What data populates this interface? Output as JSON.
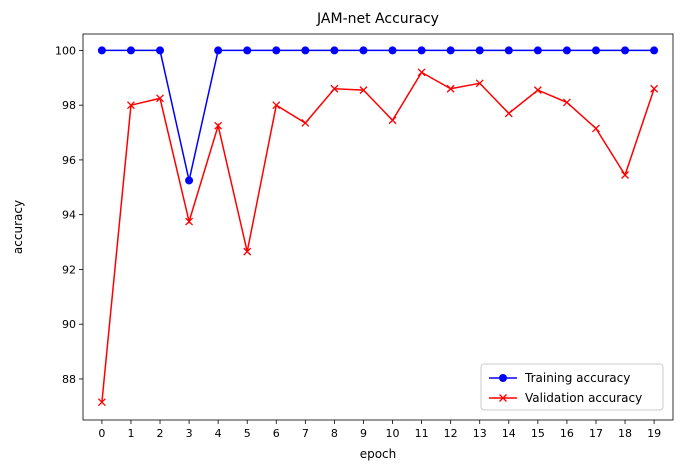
{
  "chart_data": {
    "type": "line",
    "title": "JAM-net Accuracy",
    "xlabel": "epoch",
    "ylabel": "accuracy",
    "x": [
      0,
      1,
      2,
      3,
      4,
      5,
      6,
      7,
      8,
      9,
      10,
      11,
      12,
      13,
      14,
      15,
      16,
      17,
      18,
      19
    ],
    "xticks": [
      "0",
      "1",
      "2",
      "3",
      "4",
      "5",
      "6",
      "7",
      "8",
      "9",
      "10",
      "11",
      "12",
      "13",
      "14",
      "15",
      "16",
      "17",
      "18",
      "19"
    ],
    "yticks": [
      88,
      90,
      92,
      94,
      96,
      98,
      100
    ],
    "ylim": [
      86.5,
      100.6
    ],
    "grid": false,
    "legend_position": "lower-right",
    "series": [
      {
        "name": "Training accuracy",
        "color": "#0000ff",
        "marker": "circle",
        "values": [
          100,
          100,
          100,
          95.25,
          100,
          100,
          100,
          100,
          100,
          100,
          100,
          100,
          100,
          100,
          100,
          100,
          100,
          100,
          100,
          100
        ]
      },
      {
        "name": "Validation accuracy",
        "color": "#ff0000",
        "marker": "x",
        "values": [
          87.15,
          98.0,
          98.25,
          93.75,
          97.25,
          92.65,
          98.0,
          97.35,
          98.6,
          98.55,
          97.45,
          99.2,
          98.6,
          98.8,
          97.7,
          98.55,
          98.1,
          97.15,
          95.45,
          98.6
        ]
      }
    ]
  }
}
